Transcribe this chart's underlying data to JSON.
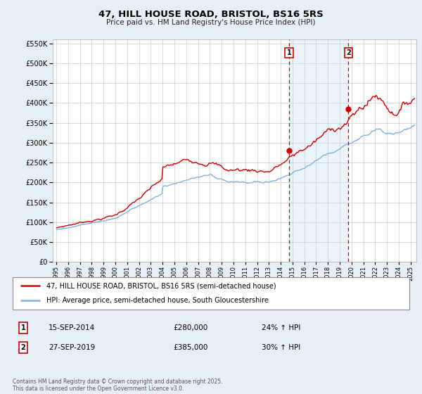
{
  "title": "47, HILL HOUSE ROAD, BRISTOL, BS16 5RS",
  "subtitle": "Price paid vs. HM Land Registry's House Price Index (HPI)",
  "legend_line1": "47, HILL HOUSE ROAD, BRISTOL, BS16 5RS (semi-detached house)",
  "legend_line2": "HPI: Average price, semi-detached house, South Gloucestershire",
  "annotation1_label": "1",
  "annotation1_date": "15-SEP-2014",
  "annotation1_price": "£280,000",
  "annotation1_hpi": "24% ↑ HPI",
  "annotation1_year": 2014.71,
  "annotation1_value": 280000,
  "annotation2_label": "2",
  "annotation2_date": "27-SEP-2019",
  "annotation2_price": "£385,000",
  "annotation2_hpi": "30% ↑ HPI",
  "annotation2_year": 2019.74,
  "annotation2_value": 385000,
  "hpi_color": "#7fb3e0",
  "price_color": "#cc0000",
  "highlight_color": "#c8dff5",
  "background_color": "#e8eef5",
  "plot_background": "#ffffff",
  "grid_color": "#cccccc",
  "footer": "Contains HM Land Registry data © Crown copyright and database right 2025.\nThis data is licensed under the Open Government Licence v3.0.",
  "ylim": [
    0,
    560000
  ],
  "yticks": [
    0,
    50000,
    100000,
    150000,
    200000,
    250000,
    300000,
    350000,
    400000,
    450000,
    500000,
    550000
  ],
  "xlim_start": 1994.7,
  "xlim_end": 2025.5
}
